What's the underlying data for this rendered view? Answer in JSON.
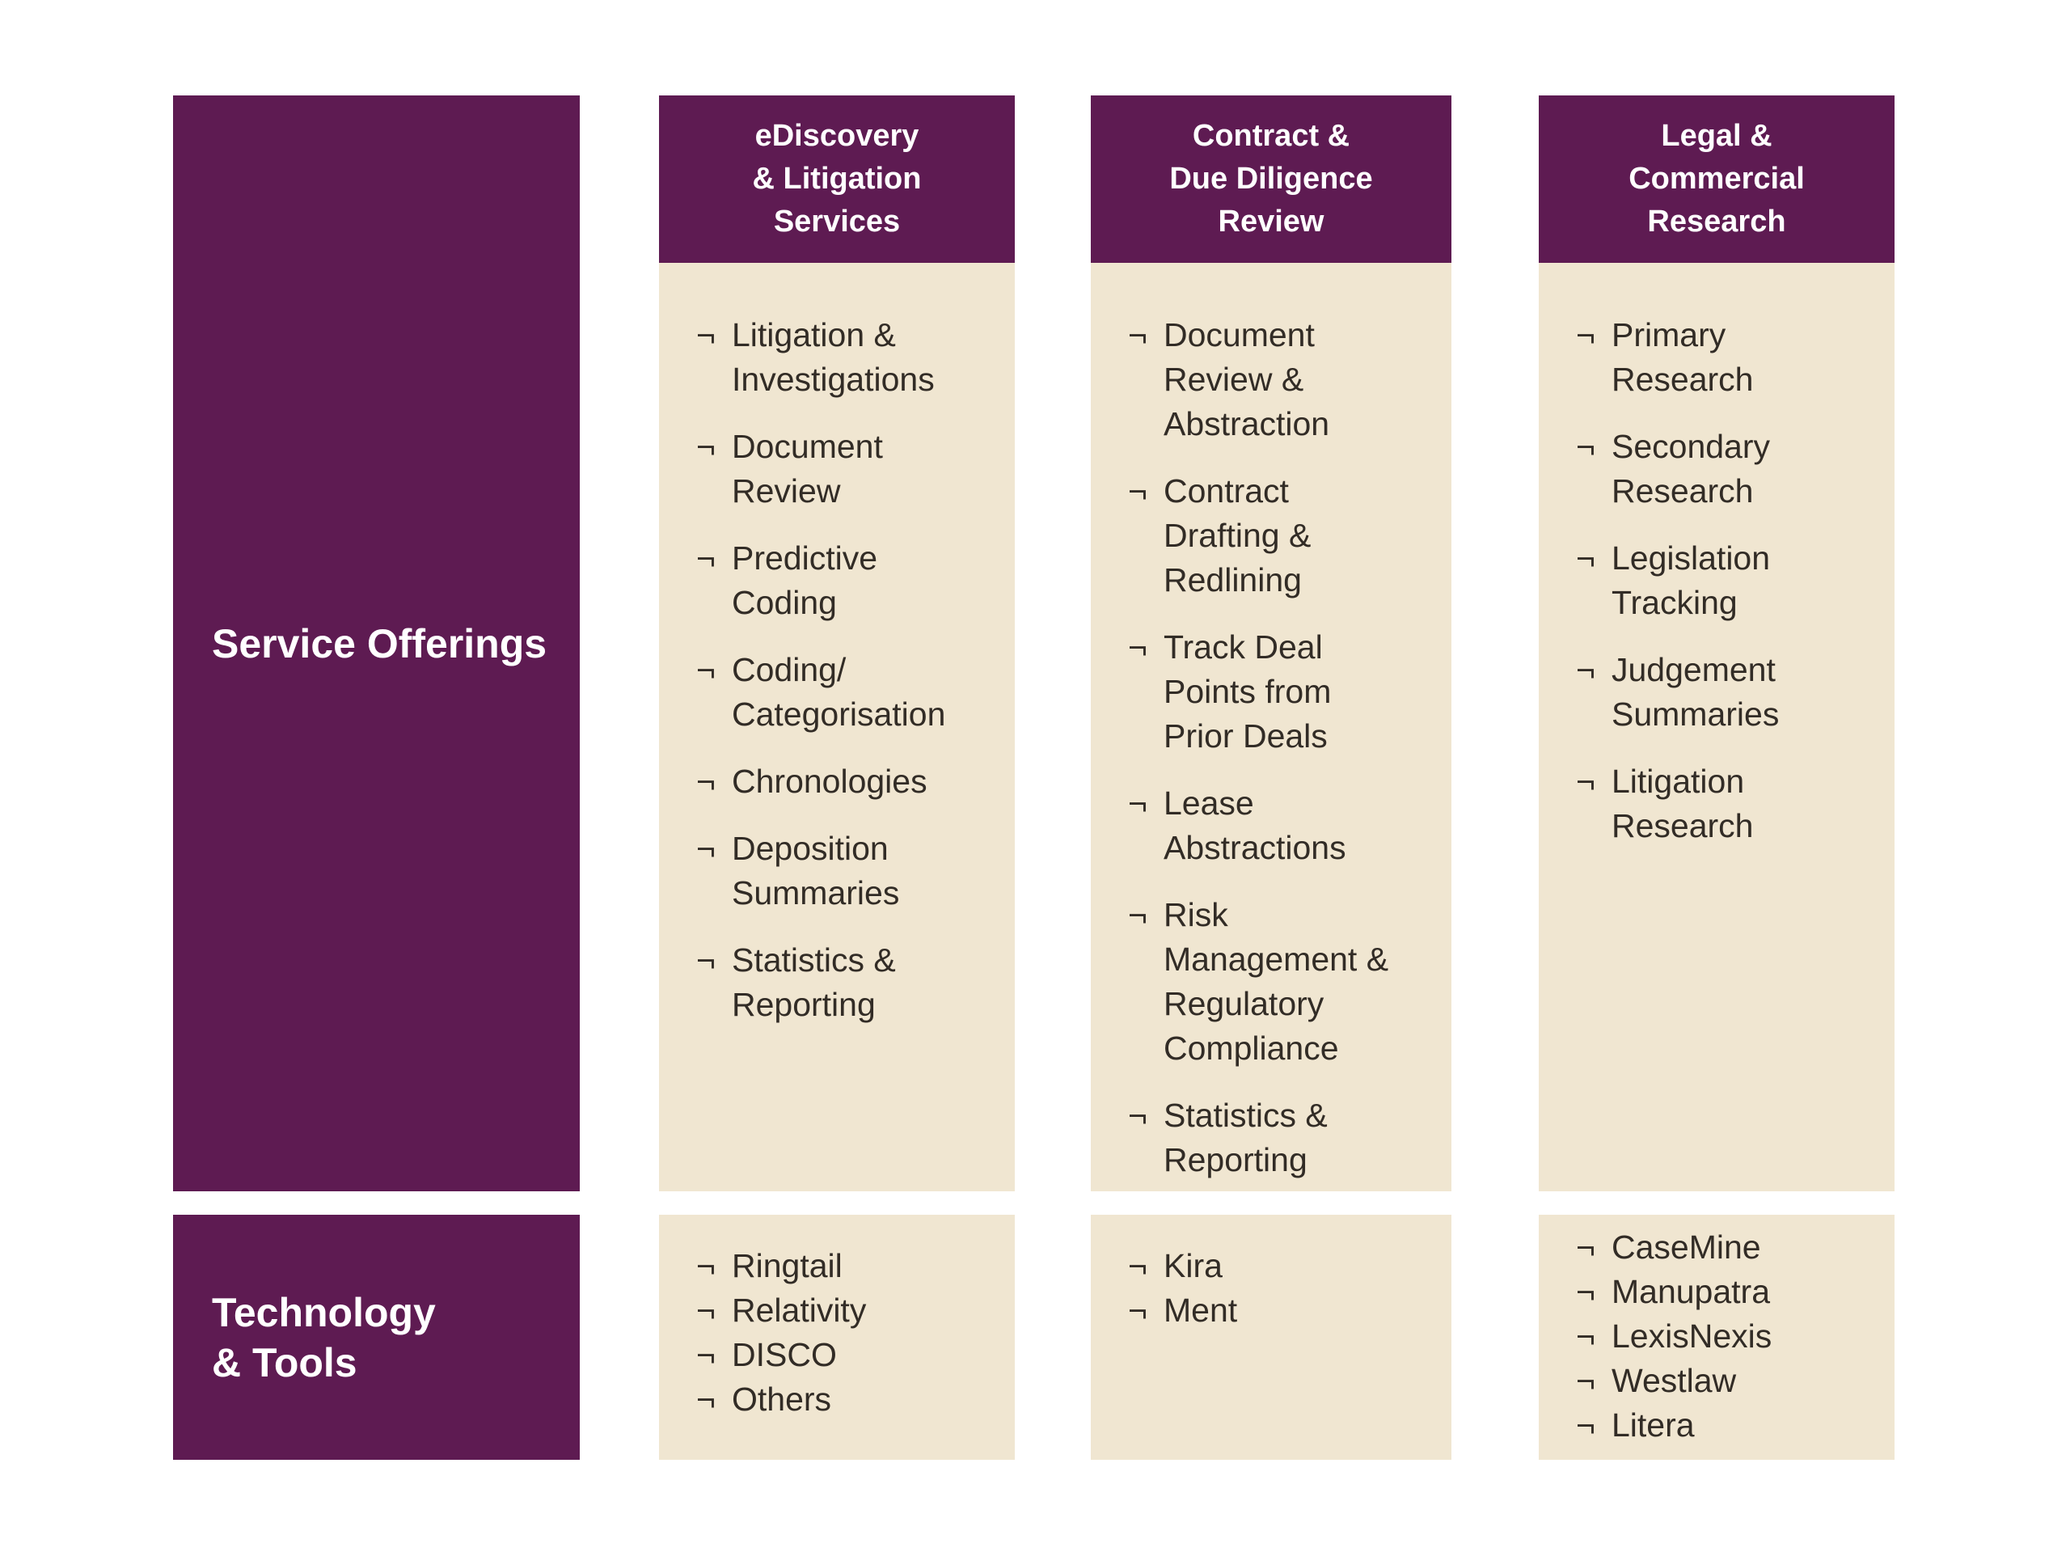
{
  "bullet_char": "¬",
  "colors": {
    "purple": "#5e1b52",
    "cream": "#f0e6d1",
    "text_dark": "#322c26",
    "label_text": "#ffffff"
  },
  "row_labels": [
    {
      "label": "Service Offerings"
    },
    {
      "label": "Technology\n& Tools"
    }
  ],
  "columns": [
    {
      "header": "eDiscovery\n& Litigation\nServices",
      "services": [
        "Litigation &\nInvestigations",
        "Document\nReview",
        "Predictive\nCoding",
        "Coding/\nCategorisation",
        "Chronologies",
        "Deposition\nSummaries",
        "Statistics &\nReporting"
      ],
      "tools": [
        "Ringtail",
        "Relativity",
        "DISCO",
        "Others"
      ]
    },
    {
      "header": "Contract &\nDue Diligence\nReview",
      "services": [
        "Document\nReview &\nAbstraction",
        "Contract\nDrafting &\nRedlining",
        "Track Deal\nPoints from\nPrior Deals",
        "Lease\nAbstractions",
        "Risk\nManagement &\nRegulatory\nCompliance",
        "Statistics &\nReporting"
      ],
      "tools": [
        "Kira",
        "Ment"
      ]
    },
    {
      "header": "Legal &\nCommercial\nResearch",
      "services": [
        "Primary\nResearch",
        "Secondary\nResearch",
        "Legislation\nTracking",
        "Judgement\nSummaries",
        "Litigation\nResearch"
      ],
      "tools": [
        "CaseMine",
        "Manupatra",
        "LexisNexis",
        "Westlaw",
        "Litera"
      ]
    }
  ]
}
